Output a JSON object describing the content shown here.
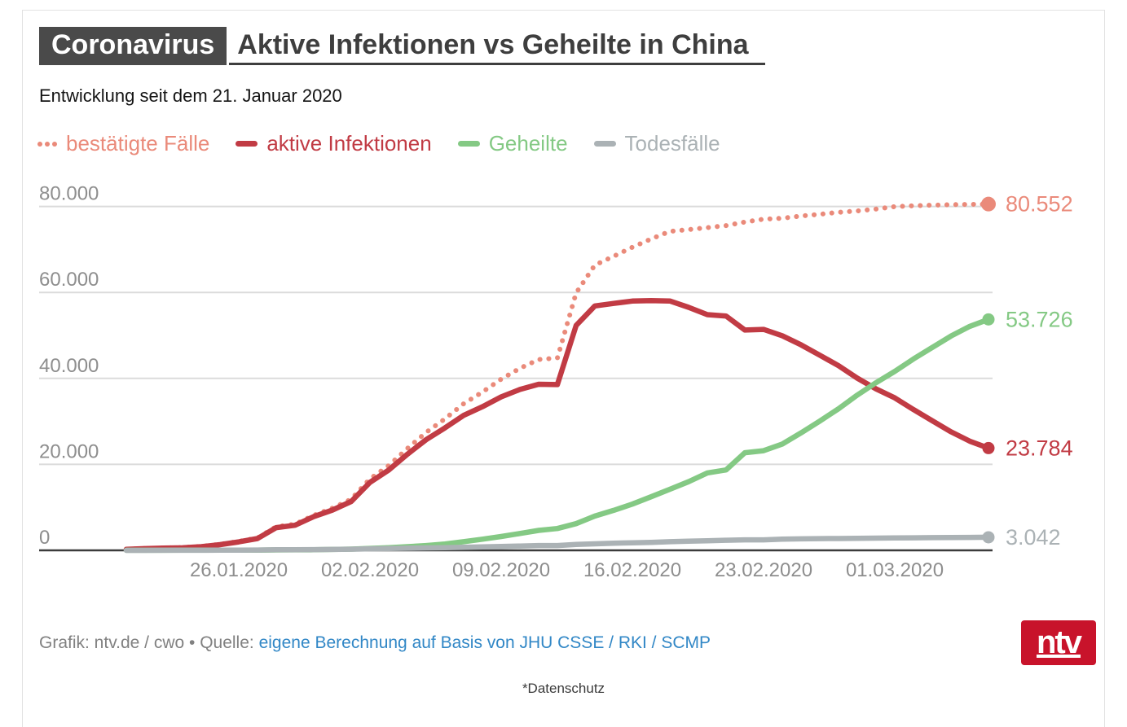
{
  "header": {
    "badge": "Coronavirus",
    "title": "Aktive Infektionen vs Geheilte in China",
    "subtitle": "Entwicklung seit dem 21. Januar 2020"
  },
  "colors": {
    "badge_bg": "#4A4A4A",
    "title_text": "#3E3E3E",
    "confirmed": "#EA8A7A",
    "active": "#C13B44",
    "recovered": "#84C984",
    "deaths": "#ABB2B5",
    "gridline": "#DBDBDB",
    "axis": "#3C3C3C",
    "tick_text": "#8E8E8E",
    "link": "#3187C6",
    "credit_text": "#818181",
    "logo_bg": "#C8132B"
  },
  "legend": [
    {
      "label": "bestätigte Fälle",
      "color": "#EA8A7A",
      "style": "dotted"
    },
    {
      "label": "aktive Infektionen",
      "color": "#C13B44",
      "style": "solid"
    },
    {
      "label": "Geheilte",
      "color": "#84C984",
      "style": "solid"
    },
    {
      "label": "Todesfälle",
      "color": "#ABB2B5",
      "style": "solid"
    }
  ],
  "chart_data": {
    "type": "line",
    "title": "Aktive Infektionen vs Geheilte in China",
    "grid": "horizontal",
    "legend_position": "top",
    "ylim": [
      0,
      80000
    ],
    "y_ticks": [
      {
        "value": 0,
        "label": "0"
      },
      {
        "value": 20000,
        "label": "20.000"
      },
      {
        "value": 40000,
        "label": "40.000"
      },
      {
        "value": 60000,
        "label": "60.000"
      },
      {
        "value": 80000,
        "label": "80.000"
      }
    ],
    "x_ticks": [
      {
        "day": 6,
        "label": "26.01.2020"
      },
      {
        "day": 13,
        "label": "02.02.2020"
      },
      {
        "day": 20,
        "label": "09.02.2020"
      },
      {
        "day": 27,
        "label": "16.02.2020"
      },
      {
        "day": 34,
        "label": "23.02.2020"
      },
      {
        "day": 41,
        "label": "01.03.2020"
      }
    ],
    "x_dates": [
      "20.01.",
      "21.01.",
      "22.01.",
      "23.01.",
      "24.01.",
      "25.01.",
      "26.01.",
      "27.01.",
      "28.01.",
      "29.01.",
      "30.01.",
      "31.01.",
      "01.02.",
      "02.02.",
      "03.02.",
      "04.02.",
      "05.02.",
      "06.02.",
      "07.02.",
      "08.02.",
      "09.02.",
      "10.02.",
      "11.02.",
      "12.02.",
      "13.02.",
      "14.02.",
      "15.02.",
      "16.02.",
      "17.02.",
      "18.02.",
      "19.02.",
      "20.02.",
      "21.02.",
      "22.02.",
      "23.02.",
      "24.02.",
      "25.02.",
      "26.02.",
      "27.02.",
      "28.02.",
      "29.02.",
      "01.03.",
      "02.03.",
      "03.03.",
      "04.03.",
      "05.03.",
      "06.03."
    ],
    "series": [
      {
        "key": "confirmed",
        "name": "bestätigte Fälle",
        "color": "#EA8A7A",
        "style": "dotted",
        "end_label": "80.552",
        "values": [
          278,
          440,
          548,
          643,
          920,
          1406,
          2075,
          2877,
          5509,
          6087,
          8141,
          9802,
          11891,
          16630,
          19716,
          23707,
          27440,
          30587,
          34110,
          36814,
          39829,
          42354,
          44386,
          44759,
          59895,
          66358,
          68413,
          70513,
          72434,
          74211,
          74619,
          75077,
          75550,
          76392,
          77042,
          77262,
          77780,
          78191,
          78630,
          78961,
          79394,
          79968,
          80174,
          80304,
          80422,
          80500,
          80552
        ]
      },
      {
        "key": "active",
        "name": "aktive Infektionen",
        "color": "#C13B44",
        "style": "solid",
        "end_label": "23.784",
        "values": [
          247,
          403,
          503,
          595,
          858,
          1325,
          1970,
          2737,
          5277,
          5834,
          7835,
          9375,
          11357,
          15806,
          18677,
          22373,
          25762,
          28477,
          31393,
          33413,
          35705,
          37424,
          38638,
          38560,
          52309,
          56860,
          57452,
          57992,
          58108,
          58002,
          56541,
          54825,
          54501,
          51251,
          51410,
          49933,
          47794,
          45389,
          42953,
          40053,
          37554,
          35470,
          32741,
          30154,
          27583,
          25391,
          23784
        ]
      },
      {
        "key": "recovered",
        "name": "Geheilte",
        "color": "#84C984",
        "style": "solid",
        "end_label": "53.726",
        "values": [
          25,
          28,
          28,
          30,
          36,
          39,
          49,
          58,
          101,
          120,
          135,
          214,
          275,
          463,
          614,
          843,
          1115,
          1477,
          1999,
          2596,
          3219,
          3918,
          4636,
          5082,
          6217,
          7977,
          9298,
          10755,
          12462,
          14206,
          15962,
          18014,
          18704,
          22699,
          23187,
          24734,
          27323,
          30084,
          32930,
          36117,
          39002,
          41625,
          44518,
          47204,
          49856,
          52094,
          53726
        ]
      },
      {
        "key": "deaths",
        "name": "Todesfälle",
        "color": "#ABB2B5",
        "style": "solid",
        "end_label": "3.042",
        "values": [
          6,
          9,
          17,
          18,
          26,
          42,
          56,
          82,
          131,
          133,
          171,
          213,
          259,
          361,
          425,
          491,
          563,
          633,
          718,
          805,
          905,
          1012,
          1112,
          1117,
          1369,
          1521,
          1663,
          1766,
          1864,
          2003,
          2116,
          2238,
          2345,
          2442,
          2445,
          2595,
          2663,
          2718,
          2747,
          2791,
          2838,
          2873,
          2915,
          2946,
          2983,
          3015,
          3042
        ]
      }
    ]
  },
  "footer": {
    "credit": "Grafik: ntv.de / cwo • Quelle:",
    "source_link": "eigene Berechnung auf Basis von JHU CSSE / RKI / SCMP",
    "privacy": "*Datenschutz",
    "logo": "ntv"
  }
}
